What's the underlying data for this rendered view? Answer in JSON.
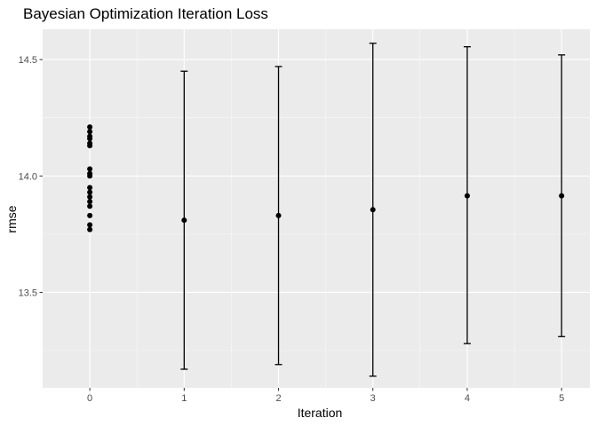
{
  "chart_data": {
    "type": "scatter",
    "title": "Bayesian Optimization Iteration Loss",
    "xlabel": "Iteration",
    "ylabel": "rmse",
    "x_ticks": [
      "0",
      "1",
      "2",
      "3",
      "4",
      "5"
    ],
    "y_ticks": [
      "13.5",
      "14.0",
      "14.5"
    ],
    "xlim": [
      -0.5,
      5.3
    ],
    "ylim": [
      13.09,
      14.63
    ],
    "grid": true,
    "legend": "none",
    "colors": {
      "panel": "#ebebeb",
      "grid_major": "#ffffff",
      "mark": "#000000",
      "tick_text": "#4d4d4d"
    },
    "initial_points": {
      "x": 0,
      "y": [
        14.21,
        14.19,
        14.17,
        14.16,
        14.14,
        14.13,
        14.03,
        14.01,
        14.0,
        13.95,
        13.93,
        13.91,
        13.89,
        13.87,
        13.83,
        13.79,
        13.77
      ]
    },
    "iterations": [
      {
        "x": 1,
        "y": 13.81,
        "ymin": 13.17,
        "ymax": 14.45
      },
      {
        "x": 2,
        "y": 13.83,
        "ymin": 13.19,
        "ymax": 14.47
      },
      {
        "x": 3,
        "y": 13.855,
        "ymin": 13.14,
        "ymax": 14.57
      },
      {
        "x": 4,
        "y": 13.915,
        "ymin": 13.28,
        "ymax": 14.555
      },
      {
        "x": 5,
        "y": 13.915,
        "ymin": 13.31,
        "ymax": 14.52
      }
    ]
  }
}
